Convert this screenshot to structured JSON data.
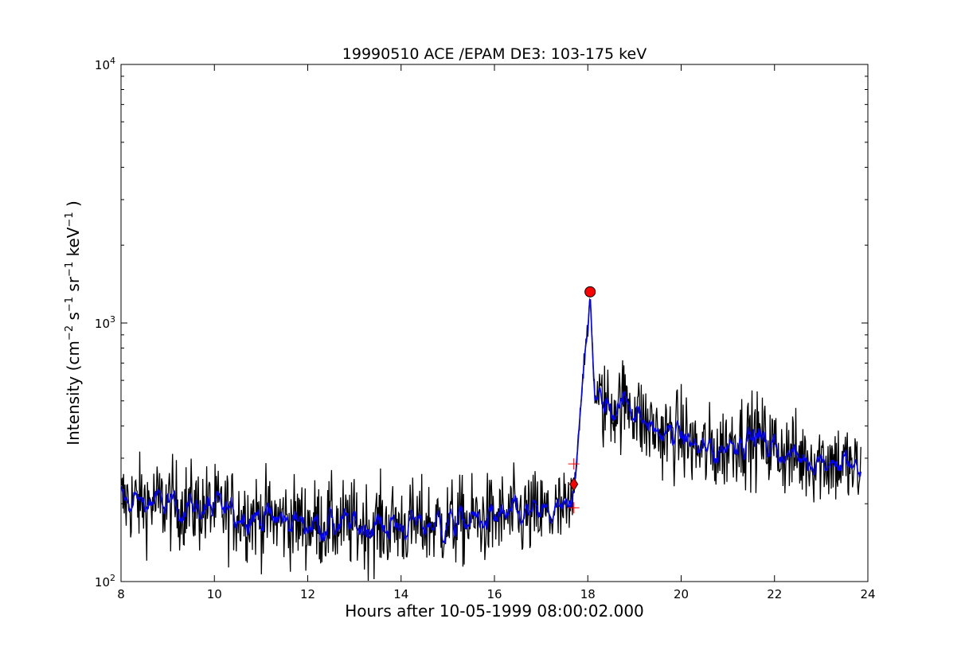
{
  "chart_data": {
    "type": "line",
    "title": "19990510 ACE /EPAM DE3: 103-175 keV",
    "xlabel": "Hours after 10-05-1999 08:00:02.000",
    "ylabel": {
      "prefix": "Intensity (cm",
      "exp1": "−2",
      "s": " s",
      "exp2": "−1",
      "sr": " sr",
      "exp3": "−1",
      "kev": " keV",
      "exp4": "−1",
      "suffix": " )"
    },
    "xlim": [
      8,
      24
    ],
    "ylim": [
      100,
      10000
    ],
    "yscale": "log",
    "grid": false,
    "x_ticks": [
      8,
      10,
      12,
      14,
      16,
      18,
      20,
      22,
      24
    ],
    "y_ticks": [
      {
        "value": 100,
        "base": "10",
        "exp": "2"
      },
      {
        "value": 1000,
        "base": "10",
        "exp": "3"
      },
      {
        "value": 10000,
        "base": "10",
        "exp": "4"
      }
    ],
    "series": [
      {
        "role": "raw",
        "color": "#000000",
        "x_start": 8.0,
        "x_end": 23.85,
        "profile": [
          [
            8.0,
            205
          ],
          [
            9.0,
            200
          ],
          [
            10.0,
            190
          ],
          [
            11.0,
            178
          ],
          [
            12.0,
            168
          ],
          [
            13.0,
            165
          ],
          [
            14.0,
            165
          ],
          [
            15.0,
            168
          ],
          [
            16.0,
            175
          ],
          [
            17.0,
            182
          ],
          [
            17.65,
            185
          ],
          [
            17.72,
            240
          ],
          [
            17.82,
            420
          ],
          [
            17.92,
            720
          ],
          [
            18.0,
            900
          ],
          [
            18.05,
            1300
          ],
          [
            18.1,
            800
          ],
          [
            18.15,
            520
          ],
          [
            18.3,
            480
          ],
          [
            18.6,
            480
          ],
          [
            18.9,
            500
          ],
          [
            19.2,
            410
          ],
          [
            19.6,
            370
          ],
          [
            20.0,
            370
          ],
          [
            20.4,
            320
          ],
          [
            20.8,
            320
          ],
          [
            21.2,
            360
          ],
          [
            21.6,
            360
          ],
          [
            22.0,
            330
          ],
          [
            22.5,
            300
          ],
          [
            23.0,
            300
          ],
          [
            23.5,
            285
          ],
          [
            23.85,
            260
          ]
        ],
        "noise_log10": 0.085
      },
      {
        "role": "smoothed",
        "color": "#0000ff",
        "x_start": 8.0,
        "x_end": 23.85,
        "noise_log10": 0.035
      }
    ],
    "markers": [
      {
        "shape": "diamond",
        "x": 17.7,
        "y": 238,
        "color": "#ff0000"
      },
      {
        "shape": "circle",
        "x": 18.05,
        "y": 1320,
        "color": "#ff0000"
      },
      {
        "shape": "plus",
        "x": 17.7,
        "y": 285,
        "color": "#ff0000"
      },
      {
        "shape": "plus",
        "x": 17.7,
        "y": 193,
        "color": "#ff0000"
      }
    ]
  }
}
